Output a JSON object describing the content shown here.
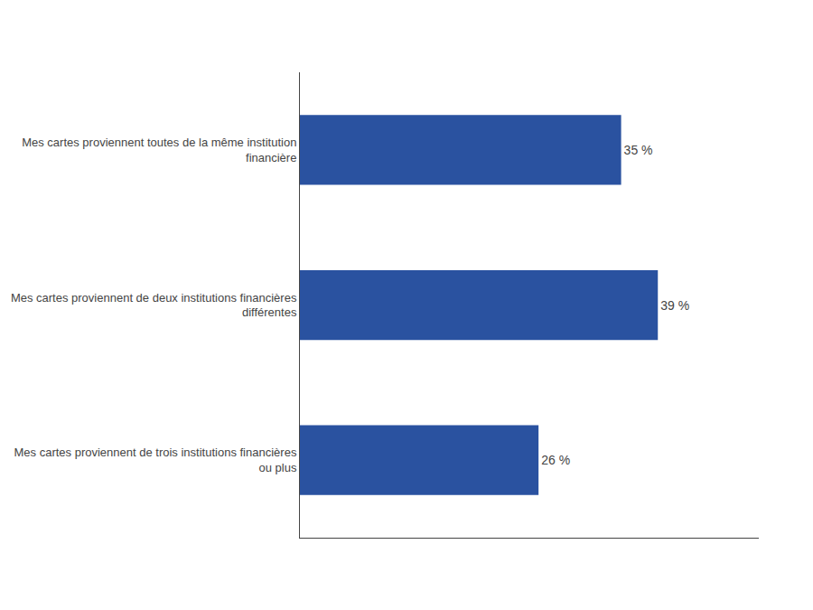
{
  "chart_data": {
    "type": "bar",
    "orientation": "horizontal",
    "categories": [
      "Mes cartes proviennent toutes de la même institution\nfinancière",
      "Mes cartes proviennent de deux institutions financières\ndifférentes",
      "Mes cartes proviennent de trois institutions financières\nou plus"
    ],
    "values": [
      35,
      39,
      26
    ],
    "value_labels": [
      "35 %",
      "39 %",
      "26 %"
    ],
    "data_labels": true,
    "color": "#2a52a0",
    "xlim": [
      0,
      50
    ],
    "grid": false,
    "tick_labels": "y"
  }
}
